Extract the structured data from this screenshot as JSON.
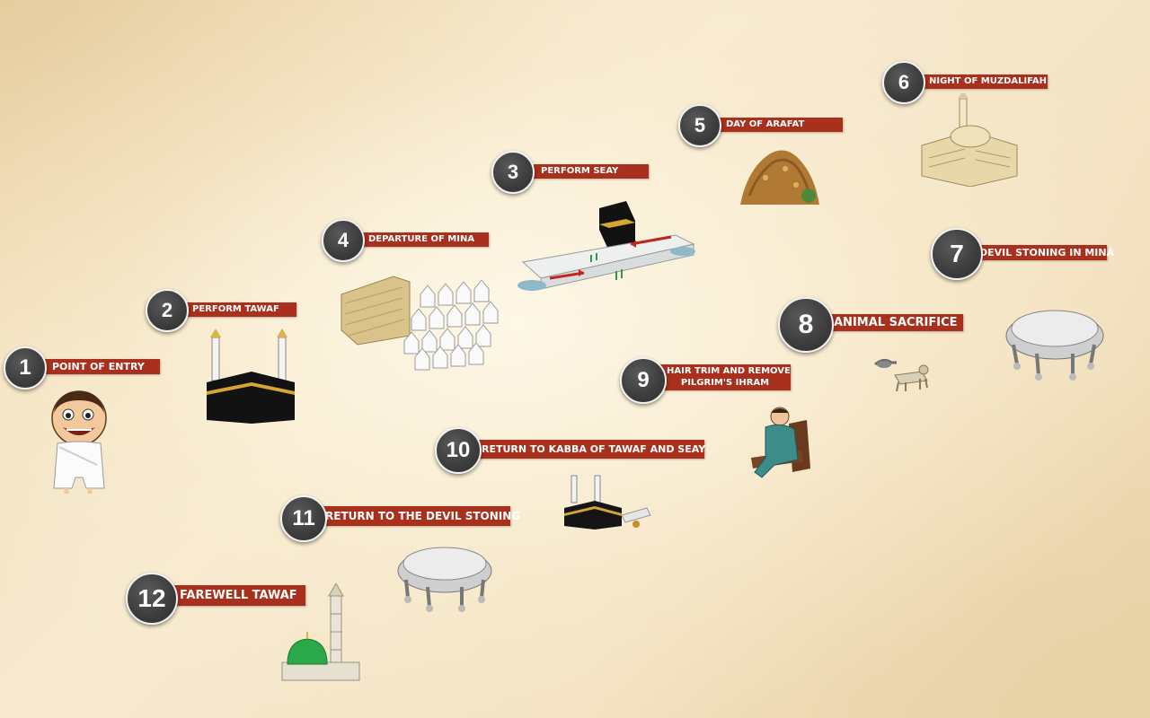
{
  "steps": [
    {
      "number": "1",
      "label": "POINT OF ENTRY",
      "icon": "pilgrim-icon"
    },
    {
      "number": "2",
      "label": "PERFORM TAWAF",
      "icon": "kaaba-icon"
    },
    {
      "number": "3",
      "label": "PERFORM SEAY",
      "icon": "safa-marwa-icon"
    },
    {
      "number": "4",
      "label": "DEPARTURE OF MINA",
      "icon": "mina-tents-icon"
    },
    {
      "number": "5",
      "label": "DAY OF ARAFAT",
      "icon": "mount-arafat-icon"
    },
    {
      "number": "6",
      "label": "NIGHT OF MUZDALIFAH",
      "icon": "mosque-icon"
    },
    {
      "number": "7",
      "label": "DEVIL STONING IN MINA",
      "icon": "jamarat-icon"
    },
    {
      "number": "8",
      "label": "ANIMAL SACRIFICE",
      "icon": "sacrifice-animals-icon"
    },
    {
      "number": "9",
      "label": "HAIR TRIM AND REMOVE\nPILGRIM'S IHRAM",
      "icon": "barber-chair-icon"
    },
    {
      "number": "10",
      "label": "RETURN TO KABBA OF TAWAF AND SEAY",
      "icon": "kaaba-seay-icon"
    },
    {
      "number": "11",
      "label": "RETURN TO THE DEVIL STONING",
      "icon": "jamarat-icon"
    },
    {
      "number": "12",
      "label": "FAREWELL TAWAF",
      "icon": "green-dome-mosque-icon"
    }
  ],
  "colors": {
    "label_bg": "#a8301c",
    "badge_bg": "#3c3c3c",
    "badge_border": "#f2f2f2"
  }
}
